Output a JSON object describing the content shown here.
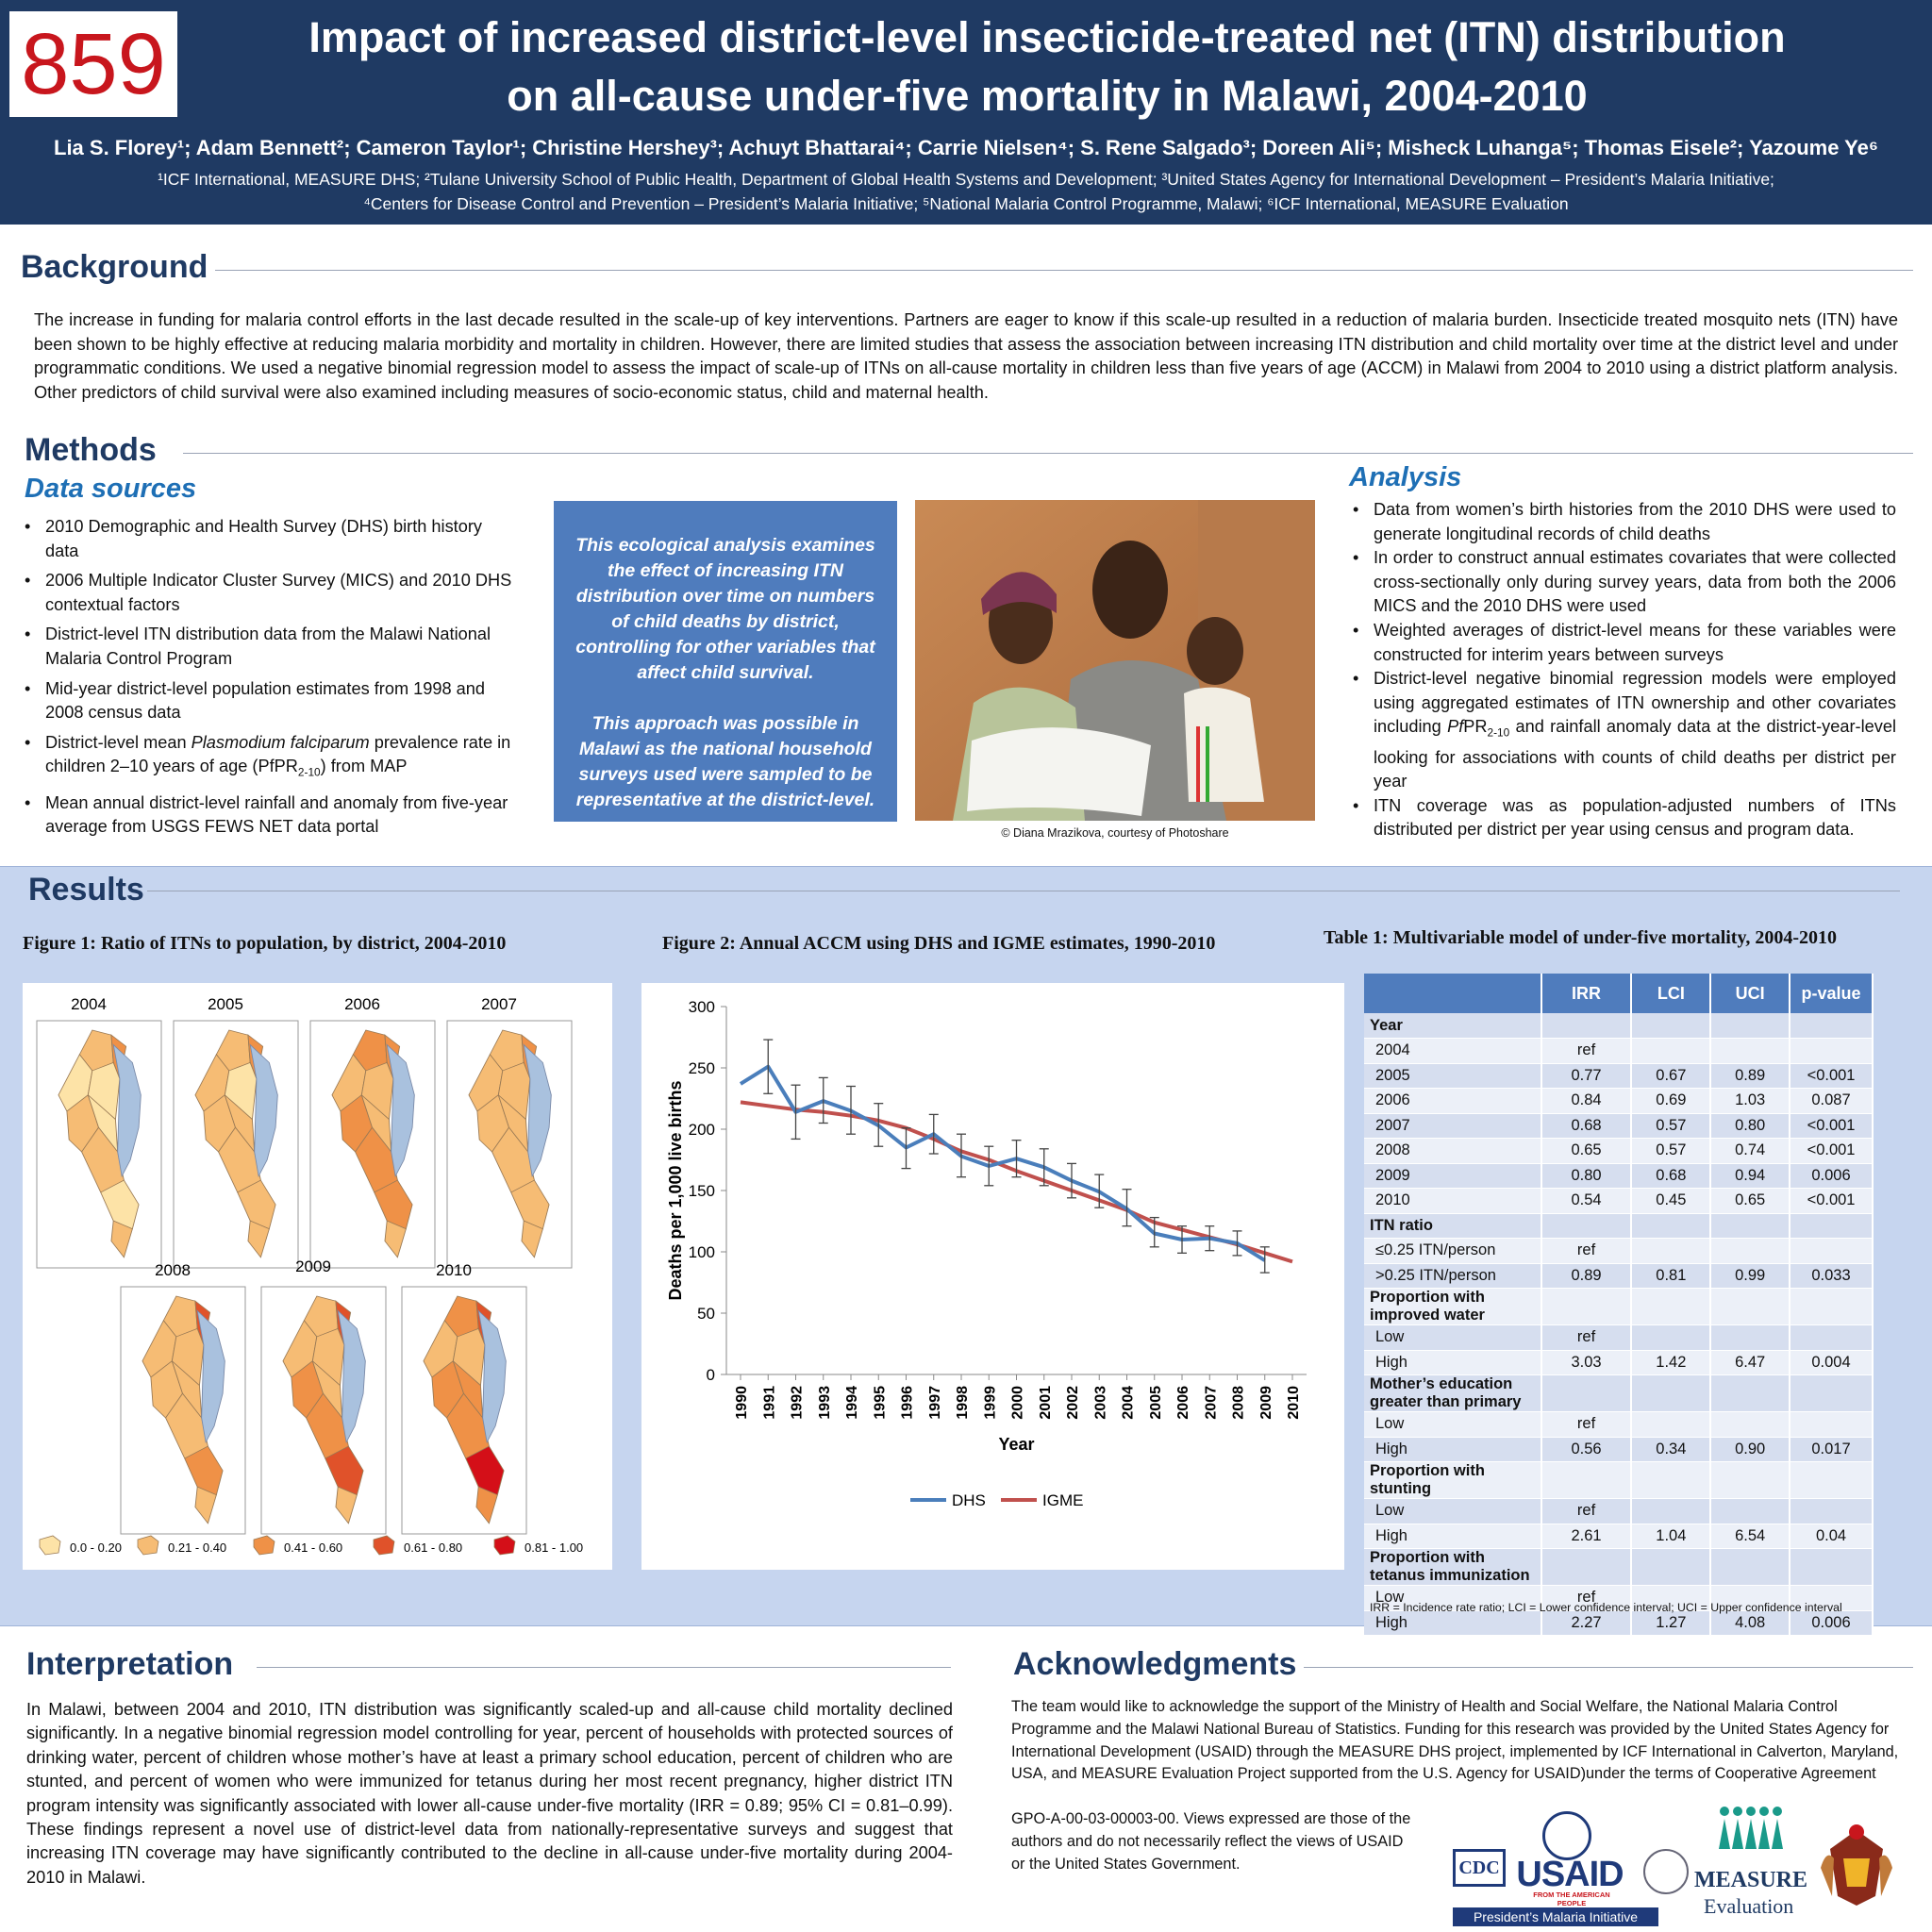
{
  "header": {
    "poster_number": "859",
    "title_line1": "Impact of increased district-level insecticide-treated net (ITN) distribution",
    "title_line2": "on all-cause under-five mortality in Malawi, 2004-2010",
    "authors": "Lia S. Florey¹; Adam Bennett²; Cameron Taylor¹; Christine Hershey³; Achuyt Bhattarai⁴; Carrie Nielsen⁴; S. Rene Salgado³; Doreen Ali⁵; Misheck Luhanga⁵; Thomas Eisele²; Yazoume Ye⁶",
    "affiliations_line1": "¹ICF International, MEASURE DHS; ²Tulane University School of Public Health, Department of Global Health Systems and Development; ³United States Agency for International Development – President’s Malaria Initiative;",
    "affiliations_line2": "⁴Centers for Disease Control and Prevention – President’s Malaria Initiative; ⁵National Malaria Control Programme, Malawi; ⁶ICF  International, MEASURE Evaluation"
  },
  "background": {
    "title": "Background",
    "text": "The increase in funding for malaria control efforts in the last decade resulted in the scale-up of key interventions. Partners are eager to know if this scale-up resulted in a reduction of malaria burden. Insecticide treated mosquito nets (ITN) have been shown to be highly effective at reducing malaria morbidity and mortality in children. However, there are limited studies that assess the association between increasing ITN distribution and child mortality over time at the district level and under programmatic conditions. We used a negative binomial regression model to assess the impact of scale-up of ITNs on all-cause mortality in children less than five years of age (ACCM) in Malawi from 2004 to 2010 using a district platform analysis. Other predictors of child survival  were also examined including measures of socio-economic status, child and maternal health."
  },
  "methods": {
    "title": "Methods",
    "data_sources_title": "Data sources",
    "data_sources": [
      "2010 Demographic and Health Survey (DHS) birth history data",
      "2006 Multiple Indicator Cluster Survey (MICS) and 2010 DHS contextual factors",
      "District-level ITN distribution data from the Malawi National Malaria Control Program",
      "Mid-year district-level population estimates from 1998 and 2008 census data"
    ],
    "ds5_a": "District-level mean ",
    "ds5_italic": "Plasmodium falciparum",
    "ds5_b": " prevalence rate in children 2–10 years of age (PfPR",
    "ds5_sub": "2-10",
    "ds5_c": ") from MAP",
    "ds6": "Mean annual district-level rainfall and anomaly from five-year average from USGS FEWS NET data portal",
    "box_p1": "This ecological analysis examines the effect of increasing ITN distribution over time on numbers of child deaths by district, controlling for other variables that affect child survival.",
    "box_p2": "This approach was possible in Malawi as the national household surveys used were sampled to be representative at the district-level.",
    "photo_credit": "© Diana Mrazikova, courtesy of Photoshare",
    "analysis_title": "Analysis",
    "analysis": [
      "Data from women’s birth histories from the 2010 DHS were used to generate longitudinal records of child deaths",
      "In order to construct annual estimates covariates that were collected cross-sectionally only during survey years, data from both the 2006 MICS and the 2010 DHS were used",
      "Weighted averages of district-level means for these variables were constructed for interim years between surveys"
    ],
    "an4_a": "District-level negative binomial regression models were employed using aggregated estimates of ITN ownership and other covariates including ",
    "an4_italic": "Pf",
    "an4_b": "PR",
    "an4_sub": "2-10",
    "an4_c": " and rainfall anomaly data at the district-year-level looking for associations with counts of child deaths per district per year",
    "an5": "ITN coverage was as population-adjusted numbers of ITNs distributed per district per year using census and program data."
  },
  "results": {
    "title": "Results",
    "fig1_title": "Figure 1: Ratio of ITNs to population, by district, 2004-2010",
    "fig1_years": [
      "2004",
      "2005",
      "2006",
      "2007",
      "2008",
      "2009",
      "2010"
    ],
    "fig1_legend": [
      "0.0 - 0.20",
      "0.21 - 0.40",
      "0.41 - 0.60",
      "0.61 - 0.80",
      "0.81 - 1.00"
    ],
    "fig1_colors": [
      "#fde3a7",
      "#f6bc74",
      "#ef9147",
      "#e0522a",
      "#d40f18"
    ],
    "fig2_title": "Figure 2: Annual ACCM using DHS and IGME estimates, 1990-2010",
    "table_title": "Table 1: Multivariable model of under-five mortality, 2004-2010",
    "table_headers": [
      "",
      "IRR",
      "LCI",
      "UCI",
      "p-value"
    ],
    "table_rows": [
      {
        "label": "Year",
        "group": true,
        "irr": "",
        "lci": "",
        "uci": "",
        "p": ""
      },
      {
        "label": "2004",
        "irr": "ref",
        "lci": "",
        "uci": "",
        "p": ""
      },
      {
        "label": "2005",
        "irr": "0.77",
        "lci": "0.67",
        "uci": "0.89",
        "p": "<0.001"
      },
      {
        "label": "2006",
        "irr": "0.84",
        "lci": "0.69",
        "uci": "1.03",
        "p": "0.087"
      },
      {
        "label": "2007",
        "irr": "0.68",
        "lci": "0.57",
        "uci": "0.80",
        "p": "<0.001"
      },
      {
        "label": "2008",
        "irr": "0.65",
        "lci": "0.57",
        "uci": "0.74",
        "p": "<0.001"
      },
      {
        "label": "2009",
        "irr": "0.80",
        "lci": "0.68",
        "uci": "0.94",
        "p": "0.006"
      },
      {
        "label": "2010",
        "irr": "0.54",
        "lci": "0.45",
        "uci": "0.65",
        "p": "<0.001"
      },
      {
        "label": "ITN ratio",
        "group": true,
        "irr": "",
        "lci": "",
        "uci": "",
        "p": ""
      },
      {
        "label": "≤0.25 ITN/person",
        "irr": "ref",
        "lci": "",
        "uci": "",
        "p": ""
      },
      {
        "label": ">0.25 ITN/person",
        "irr": "0.89",
        "lci": "0.81",
        "uci": "0.99",
        "p": "0.033"
      },
      {
        "label": "Proportion with improved water",
        "group": true,
        "irr": "",
        "lci": "",
        "uci": "",
        "p": ""
      },
      {
        "label": "Low",
        "irr": "ref",
        "lci": "",
        "uci": "",
        "p": ""
      },
      {
        "label": "High",
        "irr": "3.03",
        "lci": "1.42",
        "uci": "6.47",
        "p": "0.004"
      },
      {
        "label": "Mother’s education greater than primary",
        "group": true,
        "irr": "",
        "lci": "",
        "uci": "",
        "p": ""
      },
      {
        "label": "Low",
        "irr": "ref",
        "lci": "",
        "uci": "",
        "p": ""
      },
      {
        "label": "High",
        "irr": "0.56",
        "lci": "0.34",
        "uci": "0.90",
        "p": "0.017"
      },
      {
        "label": "Proportion with stunting",
        "group": true,
        "irr": "",
        "lci": "",
        "uci": "",
        "p": ""
      },
      {
        "label": "Low",
        "irr": "ref",
        "lci": "",
        "uci": "",
        "p": ""
      },
      {
        "label": "High",
        "irr": "2.61",
        "lci": "1.04",
        "uci": "6.54",
        "p": "0.04"
      },
      {
        "label": "Proportion with tetanus immunization",
        "group": true,
        "irr": "",
        "lci": "",
        "uci": "",
        "p": ""
      },
      {
        "label": "Low",
        "irr": "ref",
        "lci": "",
        "uci": "",
        "p": ""
      },
      {
        "label": "High",
        "irr": "2.27",
        "lci": "1.27",
        "uci": "4.08",
        "p": "0.006"
      }
    ],
    "table_note": "IRR = Incidence rate ratio; LCI = Lower confidence interval; UCI = Upper confidence interval"
  },
  "interpretation": {
    "title": "Interpretation",
    "text": "In Malawi, between 2004 and 2010, ITN distribution was significantly scaled-up and all-cause child mortality declined significantly. In a negative binomial regression model controlling for year, percent of households with protected sources of drinking water, percent of children whose mother’s have at least a primary school education, percent of children who are stunted, and percent of women who were immunized for tetanus during her most recent pregnancy, higher district ITN program intensity was significantly associated with lower all-cause under-five mortality (IRR = 0.89; 95% CI = 0.81–0.99). These findings represent a novel use of district-level data from nationally-representative surveys and suggest that increasing ITN coverage may have significantly contributed to the decline in all-cause under-five mortality during 2004-2010 in Malawi."
  },
  "acknowledgments": {
    "title": "Acknowledgments",
    "text_full": "The team would like to acknowledge the support of the Ministry of Health and Social Welfare, the National Malaria Control Programme and the Malawi National Bureau of Statistics. Funding for this research was provided by the United States Agency for International Development (USAID) through the MEASURE DHS project, implemented by ICF International in Calverton, Maryland, USA, and  MEASURE Evaluation Project  supported from the U.S. Agency for USAID)under the terms of Cooperative Agreement",
    "text_narrow": "GPO-A-00-03-00003-00. Views expressed are those of the authors and do not necessarily reflect the views of USAID or the United States Government."
  },
  "logos": {
    "cdc": "CDC",
    "usaid": "USAID",
    "usaid_tag": "FROM THE AMERICAN PEOPLE",
    "measure": "MEASURE",
    "evaluation": "Evaluation",
    "pmi": "President’s Malaria Initiative"
  },
  "chart_data": {
    "type": "line",
    "title": "Figure 2: Annual ACCM using DHS and IGME estimates, 1990-2010",
    "xlabel": "Year",
    "ylabel": "Deaths per 1,000 live births",
    "ylim": [
      0,
      300
    ],
    "yticks": [
      0,
      50,
      100,
      150,
      200,
      250,
      300
    ],
    "x": [
      1990,
      1991,
      1992,
      1993,
      1994,
      1995,
      1996,
      1997,
      1998,
      1999,
      2000,
      2001,
      2002,
      2003,
      2004,
      2005,
      2006,
      2007,
      2008,
      2009,
      2010
    ],
    "series": [
      {
        "name": "DHS",
        "color": "#4a7ebb",
        "x": [
          1990,
          1991,
          1992,
          1993,
          1994,
          1995,
          1996,
          1997,
          1998,
          1999,
          2000,
          2001,
          2002,
          2003,
          2004,
          2005,
          2006,
          2007,
          2008,
          2009
        ],
        "values": [
          237,
          251,
          214,
          223,
          215,
          203,
          185,
          196,
          178,
          170,
          176,
          169,
          158,
          149,
          135,
          115,
          110,
          111,
          107,
          93
        ],
        "err_low": [
          null,
          229,
          192,
          205,
          196,
          186,
          168,
          180,
          161,
          154,
          161,
          154,
          144,
          136,
          121,
          104,
          99,
          101,
          97,
          83
        ],
        "err_high": [
          null,
          273,
          236,
          242,
          235,
          221,
          201,
          212,
          196,
          186,
          191,
          184,
          172,
          163,
          151,
          128,
          121,
          121,
          117,
          104
        ]
      },
      {
        "name": "IGME",
        "color": "#c0504d",
        "x": [
          1990,
          1991,
          1992,
          1993,
          1994,
          1995,
          1996,
          1997,
          1998,
          1999,
          2000,
          2001,
          2002,
          2003,
          2004,
          2005,
          2006,
          2007,
          2008,
          2009,
          2010
        ],
        "values": [
          222,
          219,
          216,
          214,
          211,
          207,
          201,
          192,
          182,
          175,
          166,
          158,
          150,
          142,
          134,
          124,
          118,
          112,
          106,
          99,
          92
        ]
      }
    ],
    "legend": "bottom"
  }
}
